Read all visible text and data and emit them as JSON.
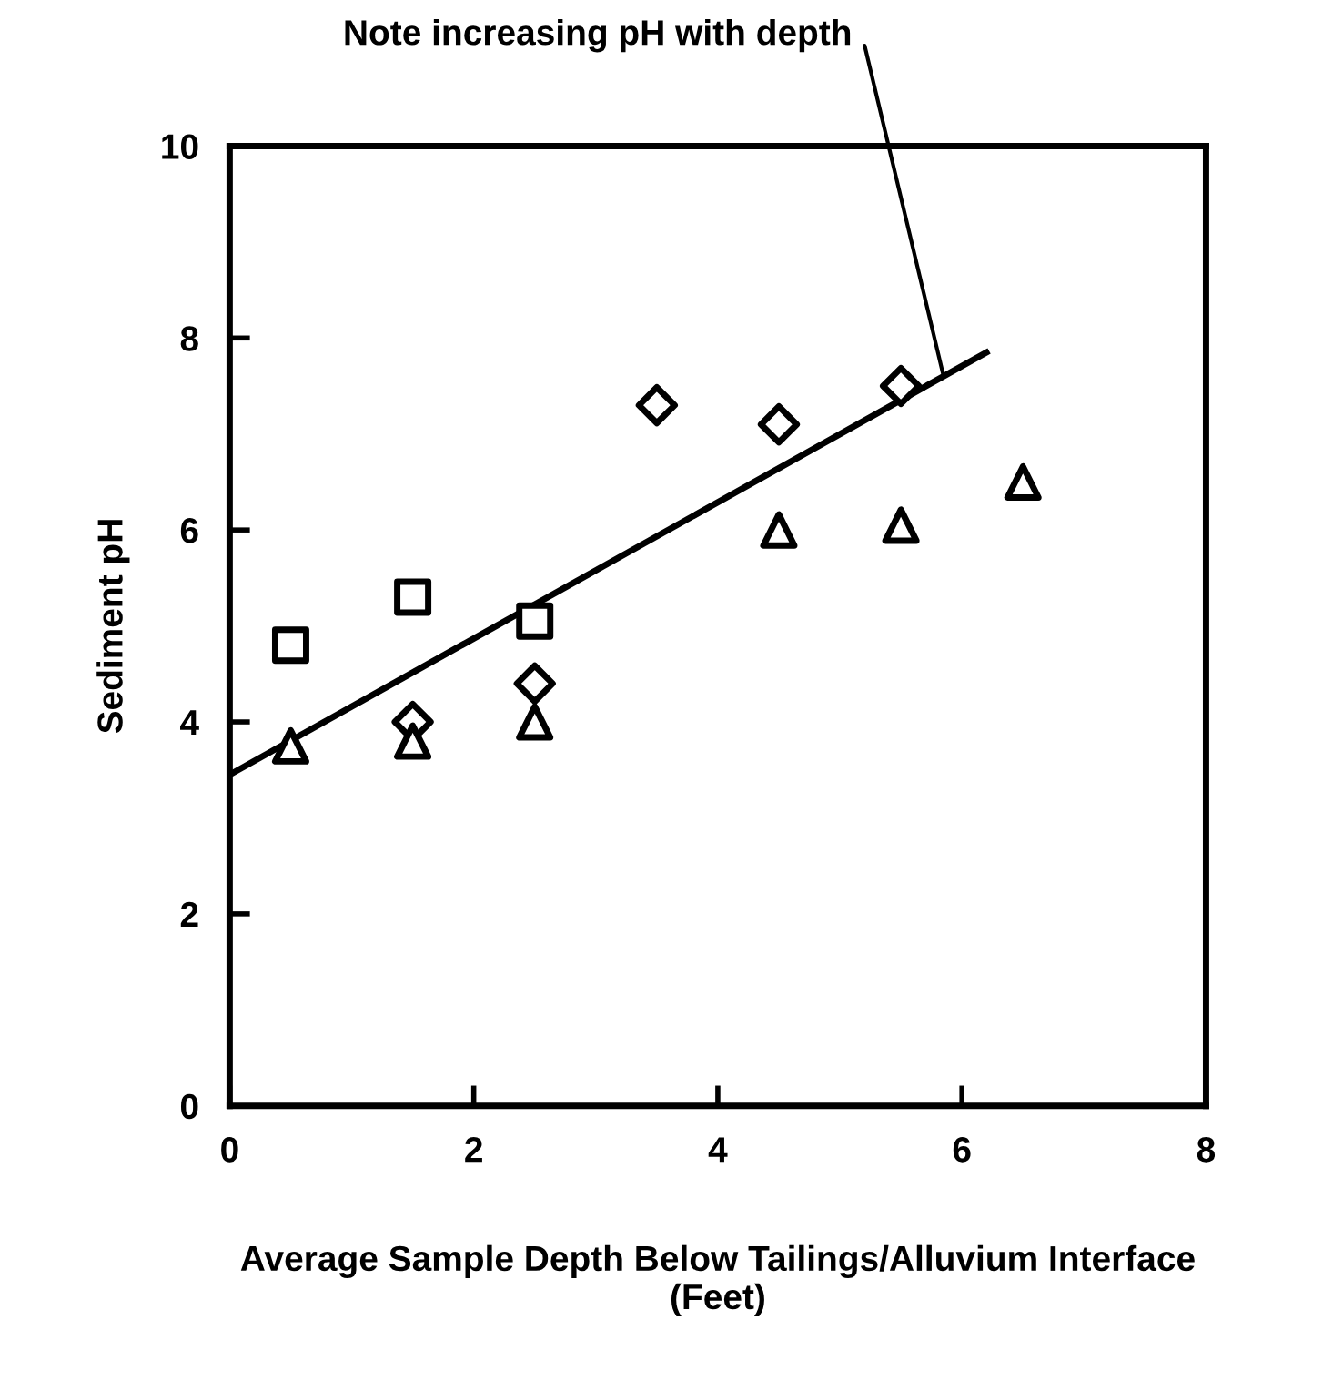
{
  "chart_data": {
    "type": "scatter",
    "xlabel": "Average Sample Depth Below Tailings/Alluvium Interface\n(Feet)",
    "ylabel": "Sediment pH",
    "xlim": [
      0,
      8
    ],
    "ylim": [
      0,
      10
    ],
    "xticks": [
      0,
      2,
      4,
      6,
      8
    ],
    "yticks": [
      0,
      2,
      4,
      6,
      8,
      10
    ],
    "grid": false,
    "series": [
      {
        "marker": "square",
        "color": "#000000",
        "x": [
          0.5,
          1.5,
          2.5
        ],
        "values": [
          4.8,
          5.3,
          5.05
        ]
      },
      {
        "marker": "diamond",
        "color": "#000000",
        "x": [
          1.5,
          2.5,
          3.5,
          4.5,
          5.5
        ],
        "values": [
          4.0,
          4.4,
          7.3,
          7.1,
          7.5
        ]
      },
      {
        "marker": "triangle",
        "color": "#000000",
        "x": [
          0.5,
          1.5,
          2.5,
          4.5,
          5.5,
          6.5
        ],
        "values": [
          3.75,
          3.8,
          4.0,
          6.0,
          6.05,
          6.5
        ]
      },
      {
        "type": "line",
        "marker": "none",
        "color": "#000000",
        "x": [
          0,
          6.2
        ],
        "values": [
          3.45,
          7.85
        ]
      }
    ],
    "annotations": [
      {
        "text": "Note increasing pH with depth",
        "x": 5.85,
        "y": 7.6
      }
    ]
  }
}
